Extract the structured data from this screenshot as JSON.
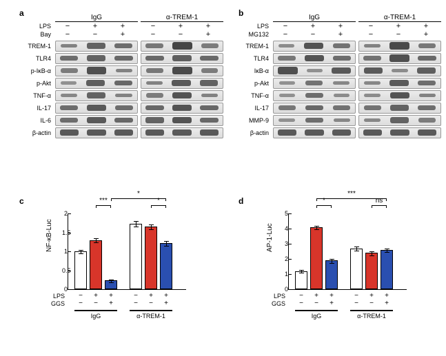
{
  "colors": {
    "bar_white": "#ffffff",
    "bar_red": "#d8352a",
    "bar_blue": "#2a4fb0",
    "band_dark": "#2b2b2b"
  },
  "panel_a": {
    "label": "a",
    "antibody_groups": [
      "IgG",
      "α-TREM-1"
    ],
    "treatments": [
      {
        "name": "LPS",
        "igG": [
          "−",
          "+",
          "+"
        ],
        "atrem": [
          "−",
          "+",
          "+"
        ]
      },
      {
        "name": "Bay",
        "igG": [
          "−",
          "−",
          "+"
        ],
        "atrem": [
          "−",
          "−",
          "+"
        ]
      }
    ],
    "proteins": [
      {
        "name": "TREM-1",
        "igG": [
          0.3,
          0.6,
          0.5
        ],
        "atrem": [
          0.4,
          0.9,
          0.35
        ]
      },
      {
        "name": "TLR4",
        "igG": [
          0.5,
          0.6,
          0.55
        ],
        "atrem": [
          0.55,
          0.65,
          0.55
        ]
      },
      {
        "name": "p-IκB-α",
        "igG": [
          0.35,
          0.8,
          0.3
        ],
        "atrem": [
          0.4,
          0.85,
          0.35
        ]
      },
      {
        "name": "p-Akt",
        "igG": [
          0.15,
          0.65,
          0.55
        ],
        "atrem": [
          0.3,
          0.7,
          0.6
        ]
      },
      {
        "name": "TNF-α",
        "igG": [
          0.25,
          0.6,
          0.3
        ],
        "atrem": [
          0.35,
          0.75,
          0.3
        ]
      },
      {
        "name": "IL-17",
        "igG": [
          0.5,
          0.7,
          0.5
        ],
        "atrem": [
          0.55,
          0.75,
          0.55
        ]
      },
      {
        "name": "IL-6",
        "igG": [
          0.5,
          0.7,
          0.55
        ],
        "atrem": [
          0.6,
          0.75,
          0.55
        ]
      },
      {
        "name": "β-actin",
        "igG": [
          0.7,
          0.7,
          0.7
        ],
        "atrem": [
          0.7,
          0.7,
          0.7
        ]
      }
    ]
  },
  "panel_b": {
    "label": "b",
    "antibody_groups": [
      "IgG",
      "α-TREM-1"
    ],
    "treatments": [
      {
        "name": "LPS",
        "igG": [
          "−",
          "+",
          "+"
        ],
        "atrem": [
          "−",
          "+",
          "+"
        ]
      },
      {
        "name": "MG132",
        "igG": [
          "−",
          "−",
          "+"
        ],
        "atrem": [
          "−",
          "−",
          "+"
        ]
      }
    ],
    "proteins": [
      {
        "name": "TREM-1",
        "igG": [
          0.2,
          0.75,
          0.45
        ],
        "atrem": [
          0.3,
          0.85,
          0.4
        ]
      },
      {
        "name": "TLR4",
        "igG": [
          0.4,
          0.75,
          0.5
        ],
        "atrem": [
          0.45,
          0.8,
          0.55
        ]
      },
      {
        "name": "IκB-α",
        "igG": [
          0.8,
          0.15,
          0.7
        ],
        "atrem": [
          0.7,
          0.2,
          0.65
        ]
      },
      {
        "name": "p-Akt",
        "igG": [
          0.15,
          0.45,
          0.25
        ],
        "atrem": [
          0.25,
          0.7,
          0.5
        ]
      },
      {
        "name": "TNF-α",
        "igG": [
          0.15,
          0.5,
          0.2
        ],
        "atrem": [
          0.2,
          0.75,
          0.3
        ]
      },
      {
        "name": "IL-17",
        "igG": [
          0.4,
          0.55,
          0.45
        ],
        "atrem": [
          0.45,
          0.6,
          0.5
        ]
      },
      {
        "name": "MMP-9",
        "igG": [
          0.15,
          0.5,
          0.25
        ],
        "atrem": [
          0.25,
          0.6,
          0.35
        ]
      },
      {
        "name": "β-actin",
        "igG": [
          0.7,
          0.7,
          0.7
        ],
        "atrem": [
          0.7,
          0.7,
          0.7
        ]
      }
    ]
  },
  "panel_c": {
    "label": "c",
    "type": "bar",
    "ylabel": "NF-κB-Luc",
    "ylim": [
      0,
      2
    ],
    "ytick_step": 0.5,
    "treatments": [
      {
        "name": "LPS",
        "vals": [
          "−",
          "+",
          "+",
          "−",
          "+",
          "+"
        ]
      },
      {
        "name": "GGS",
        "vals": [
          "−",
          "−",
          "+",
          "−",
          "−",
          "+"
        ]
      }
    ],
    "groups": [
      "IgG",
      "α-TREM-1"
    ],
    "values": [
      1.0,
      1.3,
      0.23,
      1.73,
      1.65,
      1.22
    ],
    "errors": [
      0.05,
      0.06,
      0.04,
      0.08,
      0.07,
      0.07
    ],
    "bar_colors": [
      "#ffffff",
      "#d8352a",
      "#2a4fb0",
      "#ffffff",
      "#d8352a",
      "#2a4fb0"
    ],
    "sig": [
      {
        "from": 1,
        "to": 2,
        "label": "***"
      },
      {
        "from": 4,
        "to": 5,
        "label": "*"
      },
      {
        "from": 2,
        "to": 5,
        "label": "*",
        "level": 2
      }
    ]
  },
  "panel_d": {
    "label": "d",
    "type": "bar",
    "ylabel": "AP-1-Luc",
    "ylim": [
      0,
      5
    ],
    "ytick_step": 1,
    "treatments": [
      {
        "name": "LPS",
        "vals": [
          "−",
          "+",
          "+",
          "−",
          "+",
          "+"
        ]
      },
      {
        "name": "GGS",
        "vals": [
          "−",
          "−",
          "+",
          "−",
          "−",
          "+"
        ]
      }
    ],
    "groups": [
      "IgG",
      "α-TREM-1"
    ],
    "values": [
      1.2,
      4.1,
      1.9,
      2.7,
      2.4,
      2.6
    ],
    "errors": [
      0.12,
      0.15,
      0.15,
      0.15,
      0.15,
      0.15
    ],
    "bar_colors": [
      "#ffffff",
      "#d8352a",
      "#2a4fb0",
      "#ffffff",
      "#d8352a",
      "#2a4fb0"
    ],
    "sig": [
      {
        "from": 1,
        "to": 2,
        "label": "*"
      },
      {
        "from": 4,
        "to": 5,
        "label": "ns"
      },
      {
        "from": 1,
        "to": 5,
        "label": "***",
        "level": 2
      }
    ]
  }
}
